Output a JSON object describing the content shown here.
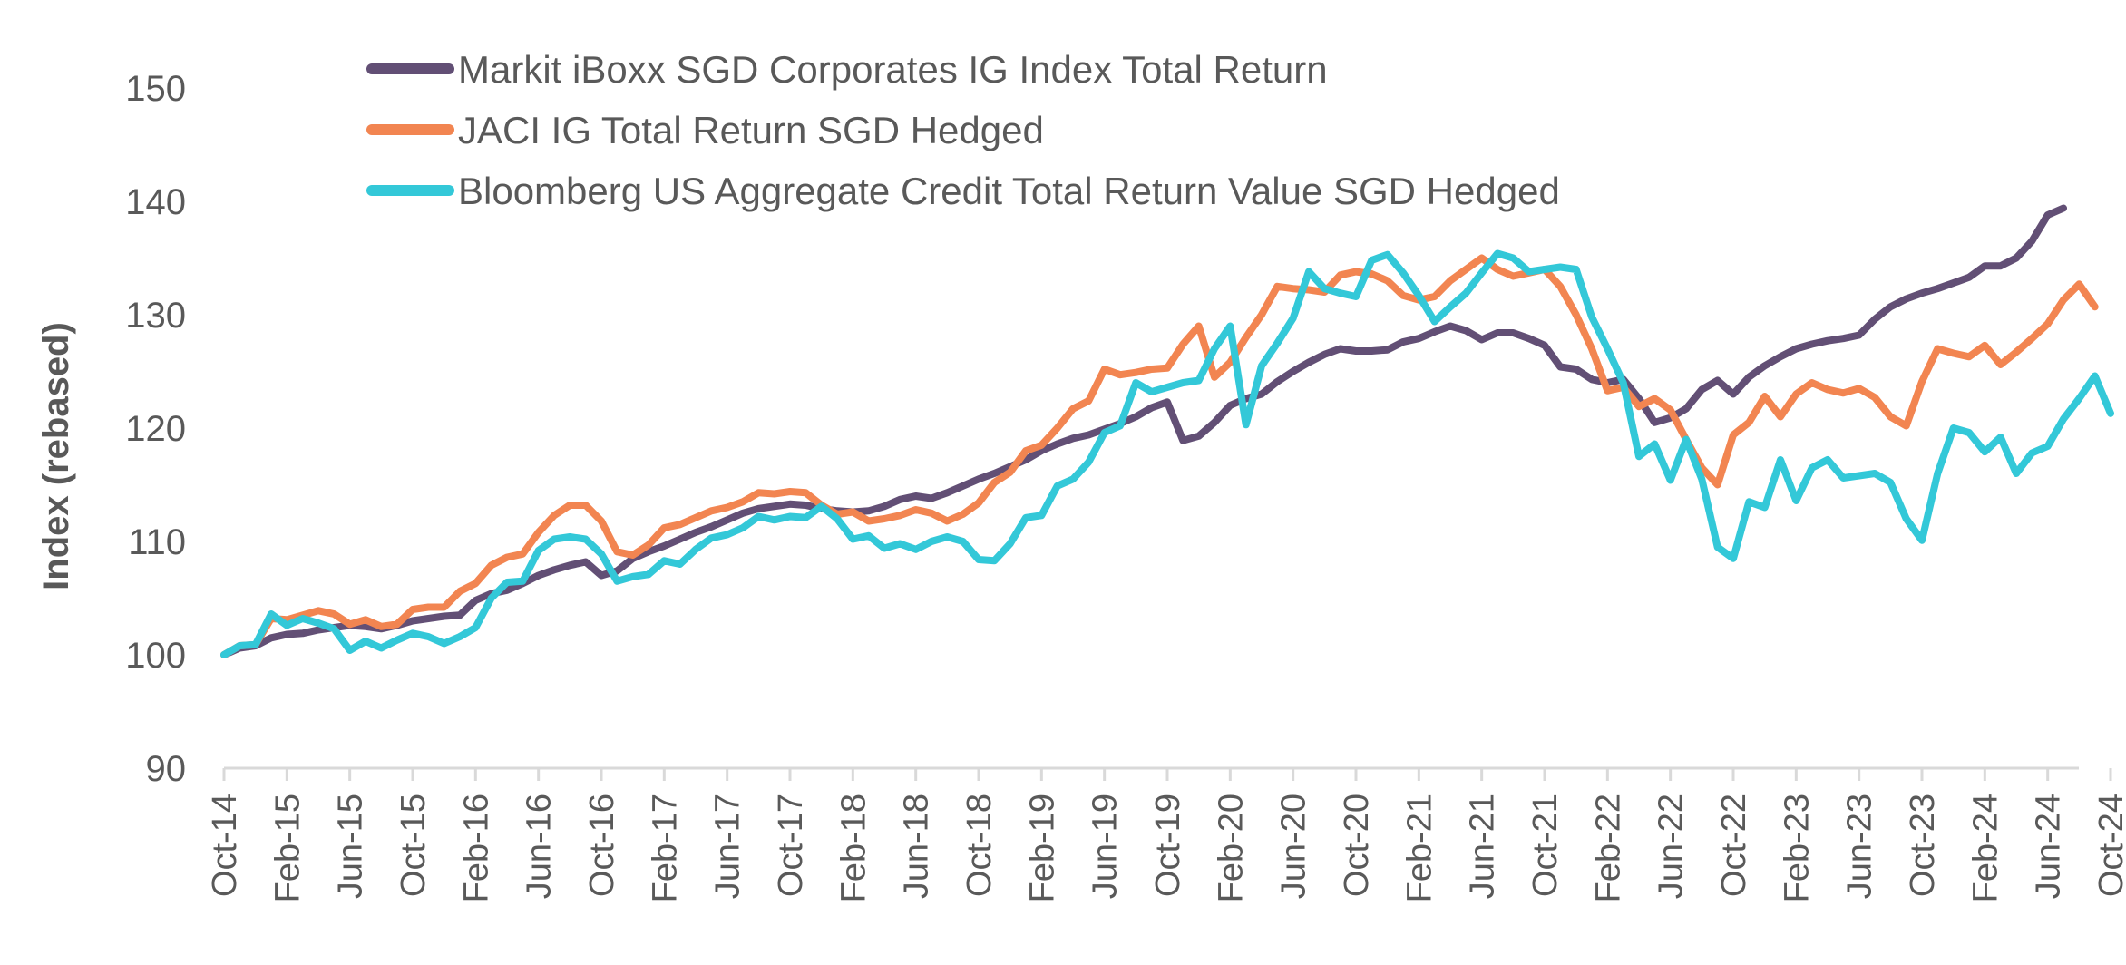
{
  "chart_data": {
    "type": "line",
    "title": "",
    "xlabel": "",
    "ylabel": "Index (rebased)",
    "ylim": [
      90,
      150
    ],
    "yticks": [
      90,
      100,
      110,
      120,
      130,
      140,
      150
    ],
    "grid": false,
    "legend_position": "top-left",
    "x_start": "Oct-14",
    "x_end": "Oct-24",
    "frequency": "monthly",
    "xtick_labels": [
      "Oct-14",
      "Feb-15",
      "Jun-15",
      "Oct-15",
      "Feb-16",
      "Jun-16",
      "Oct-16",
      "Feb-17",
      "Jun-17",
      "Oct-17",
      "Feb-18",
      "Jun-18",
      "Oct-18",
      "Feb-19",
      "Jun-19",
      "Oct-19",
      "Feb-20",
      "Jun-20",
      "Oct-20",
      "Feb-21",
      "Jun-21",
      "Oct-21",
      "Feb-22",
      "Jun-22",
      "Oct-22",
      "Feb-23",
      "Jun-23",
      "Oct-23",
      "Feb-24",
      "Jun-24",
      "Oct-24"
    ],
    "series": [
      {
        "name": "Markit iBoxx SGD Corporates IG Index Total Return",
        "color": "#624f75",
        "values": [
          100,
          100.6,
          100.8,
          101.5,
          101.8,
          101.9,
          102.2,
          102.4,
          102.6,
          102.5,
          102.3,
          102.6,
          103.0,
          103.2,
          103.4,
          103.5,
          104.8,
          105.4,
          105.7,
          106.3,
          107.0,
          107.5,
          107.9,
          108.2,
          107.0,
          107.4,
          108.5,
          109.1,
          109.6,
          110.2,
          110.8,
          111.3,
          111.9,
          112.5,
          112.9,
          113.1,
          113.3,
          113.2,
          112.9,
          112.7,
          112.6,
          112.7,
          113.1,
          113.7,
          114.0,
          113.8,
          114.3,
          114.9,
          115.5,
          116.0,
          116.6,
          117.2,
          118.0,
          118.6,
          119.1,
          119.4,
          119.9,
          120.4,
          121.0,
          121.8,
          122.3,
          118.9,
          119.3,
          120.5,
          122.0,
          122.6,
          123.0,
          124.1,
          125.0,
          125.8,
          126.5,
          127.0,
          126.8,
          126.8,
          126.9,
          127.6,
          127.9,
          128.5,
          129.0,
          128.6,
          127.8,
          128.4,
          128.4,
          127.9,
          127.3,
          125.4,
          125.2,
          124.3,
          124.0,
          124.3,
          122.6,
          120.5,
          120.9,
          121.7,
          123.4,
          124.2,
          123.0,
          124.5,
          125.5,
          126.3,
          127.0,
          127.4,
          127.7,
          127.9,
          128.2,
          129.6,
          130.7,
          131.4,
          131.9,
          132.3,
          132.8,
          133.3,
          134.3,
          134.3,
          135.0,
          136.5,
          138.8,
          139.4
        ],
        "values_note": "approximate monthly values read from chart"
      },
      {
        "name": "JACI IG Total Return SGD Hedged",
        "color": "#f28551",
        "values": [
          100,
          100.8,
          100.9,
          103.2,
          103.1,
          103.5,
          103.9,
          103.6,
          102.7,
          103.1,
          102.5,
          102.7,
          104.0,
          104.2,
          104.2,
          105.6,
          106.3,
          107.9,
          108.6,
          108.9,
          110.8,
          112.3,
          113.2,
          113.2,
          111.8,
          109.1,
          108.8,
          109.7,
          111.2,
          111.5,
          112.1,
          112.7,
          113.0,
          113.5,
          114.3,
          114.2,
          114.4,
          114.3,
          113.2,
          112.4,
          112.6,
          111.8,
          112.0,
          112.3,
          112.8,
          112.5,
          111.8,
          112.4,
          113.4,
          115.2,
          116.1,
          118.0,
          118.5,
          120.0,
          121.7,
          122.4,
          125.2,
          124.7,
          124.9,
          125.2,
          125.3,
          127.4,
          129.0,
          124.5,
          125.8,
          128.0,
          130.0,
          132.5,
          132.3,
          132.2,
          132.0,
          133.5,
          133.8,
          133.6,
          133.0,
          131.7,
          131.3,
          131.6,
          133.0,
          134.0,
          135.0,
          134.0,
          133.4,
          133.7,
          134.0,
          132.5,
          130.0,
          127.0,
          123.3,
          123.6,
          121.9,
          122.6,
          121.6,
          119.0,
          116.5,
          115.0,
          119.4,
          120.5,
          122.8,
          121.0,
          123.0,
          124.0,
          123.4,
          123.1,
          123.5,
          122.7,
          121.0,
          120.2,
          124.1,
          127.0,
          126.6,
          126.3,
          127.3,
          125.6,
          126.7,
          127.9,
          129.2,
          131.3,
          132.7,
          130.7
        ],
        "values_note": "approximate monthly values read from chart"
      },
      {
        "name": "Bloomberg US Aggregate Credit Total Return Value SGD Hedged",
        "color": "#33c8d8",
        "values": [
          100,
          100.8,
          100.9,
          103.6,
          102.6,
          103.2,
          102.8,
          102.3,
          100.4,
          101.2,
          100.6,
          101.3,
          101.9,
          101.6,
          101.0,
          101.6,
          102.4,
          105.0,
          106.4,
          106.5,
          109.2,
          110.2,
          110.4,
          110.2,
          108.9,
          106.5,
          106.9,
          107.1,
          108.3,
          108.0,
          109.3,
          110.3,
          110.6,
          111.2,
          112.2,
          111.9,
          112.2,
          112.1,
          113.1,
          112.0,
          110.2,
          110.5,
          109.4,
          109.8,
          109.3,
          110.0,
          110.4,
          110.0,
          108.4,
          108.3,
          109.8,
          112.1,
          112.3,
          114.9,
          115.5,
          117.0,
          119.6,
          120.2,
          124.0,
          123.2,
          123.6,
          124.0,
          124.2,
          127.0,
          129.0,
          120.3,
          125.5,
          127.5,
          129.7,
          133.8,
          132.3,
          131.9,
          131.6,
          134.8,
          135.3,
          133.7,
          131.7,
          129.4,
          130.7,
          131.9,
          133.7,
          135.4,
          135.0,
          133.8,
          134.0,
          134.2,
          134.0,
          129.8,
          127.0,
          124.0,
          117.5,
          118.6,
          115.4,
          119.0,
          115.5,
          109.5,
          108.5,
          113.5,
          113.0,
          117.2,
          113.6,
          116.5,
          117.2,
          115.6,
          115.8,
          116.0,
          115.2,
          112.0,
          110.1,
          116.0,
          120.0,
          119.6,
          117.9,
          119.2,
          116.0,
          117.8,
          118.4,
          120.8,
          122.6,
          124.6,
          121.3
        ],
        "values_note": "approximate monthly values read from chart"
      }
    ]
  }
}
